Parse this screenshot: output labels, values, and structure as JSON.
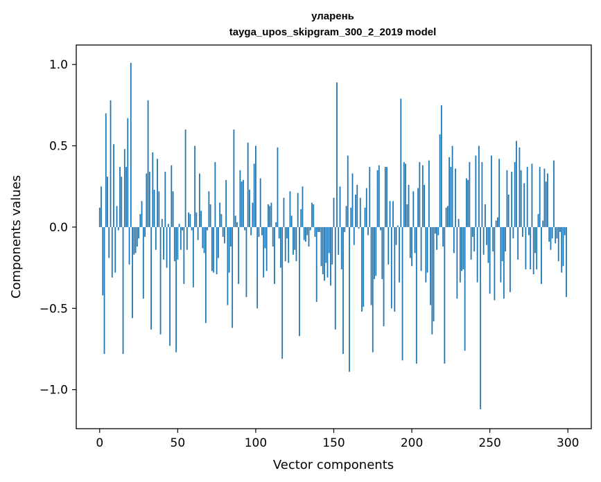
{
  "chart_data": {
    "type": "bar",
    "title": "уларень",
    "subtitle": "tayga_upos_skipgram_300_2_2019 model",
    "xlabel": "Vector components",
    "ylabel": "Components values",
    "xlim": [
      -15,
      315
    ],
    "ylim": [
      -1.24,
      1.12
    ],
    "xticks": [
      0,
      50,
      100,
      150,
      200,
      250,
      300
    ],
    "yticks": [
      -1.0,
      -0.5,
      0.0,
      0.5,
      1.0
    ],
    "xtick_labels": [
      "0",
      "50",
      "100",
      "150",
      "200",
      "250",
      "300"
    ],
    "ytick_labels": [
      "−1.0",
      "−0.5",
      "0.0",
      "0.5",
      "1.0"
    ],
    "grid": false,
    "bar_color": "#1f77b4",
    "values": [
      0.12,
      0.25,
      -0.42,
      -0.78,
      0.7,
      0.31,
      -0.19,
      0.78,
      -0.31,
      0.51,
      -0.28,
      0.13,
      -0.02,
      0.37,
      0.31,
      -0.78,
      0.48,
      0.37,
      0.67,
      -0.23,
      1.01,
      -0.56,
      -0.17,
      -0.16,
      -0.12,
      -0.07,
      0.08,
      0.16,
      -0.44,
      -0.06,
      0.33,
      0.78,
      0.34,
      -0.63,
      0.46,
      0.23,
      -0.14,
      0.42,
      0.22,
      -0.66,
      0.05,
      -0.2,
      0.34,
      -0.25,
      0.02,
      -0.73,
      0.38,
      0.22,
      -0.21,
      -0.77,
      -0.2,
      0.02,
      -0.14,
      -0.02,
      -0.35,
      0.6,
      -0.14,
      0.09,
      0.08,
      -0.02,
      -0.37,
      0.5,
      0.09,
      -0.08,
      0.33,
      0.1,
      -0.13,
      -0.16,
      -0.59,
      -0.02,
      0.22,
      0.14,
      -0.27,
      -0.28,
      0.4,
      -0.29,
      -0.19,
      0.15,
      0.08,
      -0.06,
      -0.1,
      0.29,
      -0.48,
      -0.28,
      -0.12,
      -0.62,
      0.6,
      0.07,
      0.03,
      -0.35,
      0.35,
      0.28,
      0.29,
      -0.02,
      -0.43,
      0.52,
      0.23,
      -0.05,
      0.15,
      0.39,
      0.5,
      -0.5,
      -0.06,
      0.3,
      -0.05,
      -0.31,
      -0.13,
      -0.27,
      0.14,
      0.13,
      0.15,
      -0.12,
      -0.35,
      0.03,
      0.49,
      -0.07,
      -0.25,
      -0.81,
      0.18,
      -0.21,
      -0.07,
      -0.22,
      0.22,
      0.07,
      -0.17,
      -0.14,
      -0.21,
      0.21,
      -0.67,
      0.11,
      0.25,
      -0.08,
      -0.09,
      -0.05,
      -0.12,
      -0.02,
      0.15,
      0.14,
      -0.06,
      -0.46,
      -0.03,
      -0.03,
      -0.24,
      -0.29,
      -0.33,
      -0.22,
      -0.31,
      -0.16,
      -0.36,
      -0.23,
      0.18,
      -0.63,
      0.89,
      -0.17,
      0.25,
      -0.26,
      -0.78,
      -0.03,
      0.13,
      0.44,
      -0.89,
      0.12,
      0.33,
      -0.11,
      0.2,
      0.26,
      -0.01,
      0.18,
      -0.52,
      -0.49,
      0.12,
      0.24,
      -0.05,
      0.37,
      -0.48,
      -0.77,
      -0.32,
      -0.3,
      0.35,
      0.38,
      -0.02,
      -0.32,
      -0.61,
      0.37,
      0.37,
      -0.23,
      0.16,
      -0.5,
      0.16,
      -0.52,
      -0.11,
      0.01,
      -0.34,
      0.79,
      -0.82,
      0.4,
      0.39,
      0.14,
      0.26,
      -0.19,
      -0.24,
      0.22,
      -0.16,
      -0.84,
      0.24,
      0.4,
      -0.27,
      0.38,
      0.26,
      -0.34,
      -0.28,
      0.41,
      -0.48,
      -0.66,
      -0.58,
      -0.04,
      -0.14,
      -0.05,
      0.57,
      0.75,
      -0.12,
      -0.84,
      0.12,
      0.13,
      0.43,
      0.37,
      0.5,
      -0.16,
      0.36,
      -0.44,
      0.05,
      -0.34,
      -0.27,
      -0.26,
      -0.76,
      0.3,
      0.29,
      0.4,
      -0.2,
      -0.06,
      -0.15,
      0.44,
      -0.34,
      0.5,
      -1.12,
      0.4,
      -0.17,
      0.14,
      -0.11,
      -0.22,
      -0.41,
      0.44,
      -0.15,
      -0.45,
      0.04,
      0.06,
      0.42,
      -0.34,
      -0.21,
      -0.44,
      -0.15,
      0.35,
      0.2,
      -0.4,
      0.34,
      -0.07,
      0.4,
      0.53,
      -0.2,
      0.49,
      0.35,
      -0.06,
      0.27,
      -0.26,
      0.37,
      -0.05,
      -0.26,
      0.39,
      -0.29,
      -0.16,
      -0.26,
      0.08,
      0.37,
      -0.35,
      0.04,
      0.36,
      0.28,
      0.33,
      -0.09,
      -0.14,
      -0.07,
      0.41,
      -0.1,
      -0.07,
      -0.21,
      -0.03,
      -0.28,
      -0.24,
      -0.05,
      -0.43
    ]
  }
}
